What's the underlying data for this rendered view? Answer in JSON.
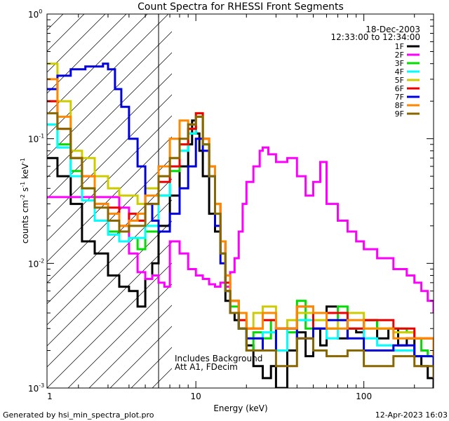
{
  "chart_data": {
    "type": "line",
    "title": "Count Spectra for RHESSI Front Segments",
    "xlabel": "Energy (keV)",
    "ylabel_parts": {
      "counts_cm": "counts cm",
      "exp_m2": "-2",
      "s": " s",
      "exp_m1_s": "-1",
      "kev": " keV",
      "exp_m1_kev": "-1"
    },
    "x_scale": "log",
    "y_scale": "log",
    "xlim": [
      1.3,
      260
    ],
    "ylim": [
      0.001,
      1.0
    ],
    "x_ticks": [
      {
        "value": 1,
        "label": "1"
      },
      {
        "value": 10,
        "label": "10"
      },
      {
        "value": 100,
        "label": "100"
      }
    ],
    "y_ticks": [
      {
        "value": 1.0,
        "label": "10",
        "exp": "0"
      },
      {
        "value": 0.1,
        "label": "10",
        "exp": "-1"
      },
      {
        "value": 0.01,
        "label": "10",
        "exp": "-2"
      },
      {
        "value": 0.001,
        "label": "10",
        "exp": "-3"
      }
    ],
    "shaded_region": {
      "x_from": 1.3,
      "x_to": 6.0,
      "pattern": "diagonal hatch"
    },
    "legend": {
      "date": "18-Dec-2003",
      "time_range": "12:33:00 to 12:34:00",
      "position": "top-right"
    },
    "annotations": {
      "line1": "Includes Background",
      "line2": "Att A1, FDecim"
    },
    "series": [
      {
        "name": "1F",
        "color": "#000000",
        "x": [
          1.3,
          1.5,
          1.8,
          2.1,
          2.5,
          3.0,
          3.5,
          4.0,
          4.5,
          5.0,
          5.5,
          6.0,
          7.0,
          8.0,
          9.0,
          9.5,
          10,
          10.5,
          11,
          12,
          13,
          14,
          15,
          16,
          17,
          18,
          20,
          22,
          25,
          28,
          30,
          35,
          40,
          45,
          50,
          55,
          60,
          70,
          80,
          90,
          100,
          120,
          140,
          160,
          180,
          200,
          220,
          240,
          260
        ],
        "values": [
          0.07,
          0.05,
          0.03,
          0.015,
          0.012,
          0.008,
          0.0065,
          0.006,
          0.0045,
          0.0075,
          0.01,
          0.02,
          0.035,
          0.06,
          0.09,
          0.14,
          0.11,
          0.08,
          0.05,
          0.025,
          0.018,
          0.012,
          0.005,
          0.004,
          0.0035,
          0.003,
          0.0022,
          0.0015,
          0.0012,
          0.0015,
          0.001,
          0.002,
          0.0028,
          0.0018,
          0.003,
          0.0022,
          0.0045,
          0.0025,
          0.003,
          0.0028,
          0.0035,
          0.0025,
          0.003,
          0.0022,
          0.0025,
          0.0018,
          0.0015,
          0.0012,
          0.001
        ]
      },
      {
        "name": "2F",
        "color": "#ff00ff",
        "x": [
          1.3,
          1.5,
          2.0,
          2.5,
          3.0,
          3.5,
          4.0,
          4.5,
          5.0,
          5.5,
          6.0,
          6.5,
          7.0,
          8.0,
          9.0,
          10,
          11,
          12,
          13,
          14,
          15,
          16,
          17,
          18,
          19,
          20,
          22,
          24,
          25,
          27,
          30,
          35,
          40,
          45,
          50,
          55,
          60,
          70,
          80,
          90,
          100,
          120,
          150,
          180,
          200,
          220,
          240,
          260
        ],
        "values": [
          0.034,
          0.034,
          0.034,
          0.034,
          0.034,
          0.028,
          0.012,
          0.0085,
          0.0075,
          0.008,
          0.007,
          0.0065,
          0.015,
          0.012,
          0.009,
          0.008,
          0.0075,
          0.0068,
          0.0065,
          0.007,
          0.0065,
          0.0085,
          0.011,
          0.018,
          0.03,
          0.045,
          0.06,
          0.08,
          0.085,
          0.075,
          0.065,
          0.07,
          0.05,
          0.035,
          0.045,
          0.065,
          0.03,
          0.022,
          0.018,
          0.015,
          0.013,
          0.011,
          0.009,
          0.008,
          0.007,
          0.006,
          0.005,
          0.004
        ]
      },
      {
        "name": "3F",
        "color": "#00dd00",
        "x": [
          1.3,
          1.5,
          1.8,
          2.1,
          2.5,
          3.0,
          3.5,
          4.0,
          4.5,
          5.0,
          6.0,
          7.0,
          8.0,
          9.0,
          10,
          11,
          12,
          13,
          14,
          15,
          16,
          18,
          20,
          22,
          25,
          28,
          30,
          35,
          40,
          45,
          50,
          60,
          70,
          80,
          100,
          120,
          150,
          180,
          200,
          220,
          240,
          260
        ],
        "values": [
          0.13,
          0.09,
          0.055,
          0.04,
          0.022,
          0.018,
          0.015,
          0.016,
          0.013,
          0.018,
          0.035,
          0.055,
          0.08,
          0.11,
          0.15,
          0.09,
          0.05,
          0.025,
          0.012,
          0.006,
          0.0045,
          0.003,
          0.002,
          0.0028,
          0.0025,
          0.0035,
          0.003,
          0.0028,
          0.005,
          0.003,
          0.004,
          0.003,
          0.0045,
          0.003,
          0.0035,
          0.003,
          0.003,
          0.0028,
          0.0025,
          0.002,
          0.0018,
          0.0015
        ]
      },
      {
        "name": "4F",
        "color": "#00ffff",
        "x": [
          1.3,
          1.5,
          1.8,
          2.1,
          2.5,
          3.0,
          3.5,
          4.0,
          4.5,
          5.0,
          6.0,
          7.0,
          8.0,
          9.0,
          10,
          11,
          12,
          13,
          14,
          15,
          16,
          18,
          20,
          25,
          30,
          35,
          40,
          50,
          60,
          70,
          80,
          100,
          120,
          150,
          200,
          260
        ],
        "values": [
          0.13,
          0.085,
          0.05,
          0.032,
          0.022,
          0.017,
          0.015,
          0.016,
          0.016,
          0.02,
          0.035,
          0.06,
          0.08,
          0.11,
          0.15,
          0.09,
          0.05,
          0.025,
          0.012,
          0.006,
          0.004,
          0.003,
          0.0025,
          0.0028,
          0.002,
          0.003,
          0.0035,
          0.003,
          0.0025,
          0.003,
          0.003,
          0.0025,
          0.0022,
          0.002,
          0.0018,
          0.0015
        ]
      },
      {
        "name": "5F",
        "color": "#cccc00",
        "x": [
          1.3,
          1.5,
          1.8,
          2.1,
          2.5,
          3.0,
          3.5,
          4.0,
          4.5,
          5.0,
          6.0,
          7.0,
          8.0,
          9.0,
          10,
          11,
          12,
          13,
          14,
          15,
          16,
          18,
          20,
          22,
          25,
          30,
          35,
          40,
          50,
          60,
          70,
          80,
          100,
          120,
          150,
          200,
          260
        ],
        "values": [
          0.4,
          0.2,
          0.08,
          0.07,
          0.05,
          0.04,
          0.035,
          0.035,
          0.03,
          0.04,
          0.05,
          0.07,
          0.09,
          0.12,
          0.16,
          0.1,
          0.06,
          0.03,
          0.015,
          0.008,
          0.005,
          0.004,
          0.003,
          0.004,
          0.0045,
          0.003,
          0.0035,
          0.004,
          0.0035,
          0.003,
          0.0035,
          0.004,
          0.003,
          0.003,
          0.0028,
          0.0025,
          0.002
        ]
      },
      {
        "name": "6F",
        "color": "#ee0000",
        "x": [
          1.3,
          1.5,
          1.8,
          2.1,
          2.5,
          3.0,
          3.5,
          4.0,
          4.5,
          5.0,
          6.0,
          7.0,
          8.0,
          9.0,
          10,
          11,
          12,
          13,
          14,
          15,
          16,
          18,
          20,
          25,
          30,
          40,
          50,
          60,
          80,
          100,
          150,
          200,
          260
        ],
        "values": [
          0.2,
          0.12,
          0.07,
          0.05,
          0.03,
          0.028,
          0.02,
          0.025,
          0.022,
          0.03,
          0.045,
          0.06,
          0.09,
          0.12,
          0.16,
          0.1,
          0.06,
          0.03,
          0.015,
          0.007,
          0.005,
          0.0035,
          0.003,
          0.0035,
          0.003,
          0.0045,
          0.003,
          0.004,
          0.003,
          0.0035,
          0.003,
          0.0025,
          0.002
        ]
      },
      {
        "name": "7F",
        "color": "#0000dd",
        "x": [
          1.3,
          1.5,
          1.8,
          2.0,
          2.2,
          2.5,
          2.8,
          3.0,
          3.3,
          3.6,
          4.0,
          4.5,
          5.0,
          5.5,
          6.0,
          7.0,
          8.0,
          9.0,
          10,
          11,
          12,
          13,
          14,
          15,
          16,
          18,
          20,
          25,
          30,
          40,
          50,
          60,
          80,
          100,
          150,
          200,
          260
        ],
        "values": [
          0.25,
          0.32,
          0.36,
          0.36,
          0.38,
          0.38,
          0.4,
          0.36,
          0.25,
          0.18,
          0.1,
          0.06,
          0.03,
          0.022,
          0.018,
          0.025,
          0.04,
          0.06,
          0.1,
          0.08,
          0.05,
          0.02,
          0.01,
          0.006,
          0.004,
          0.003,
          0.0025,
          0.002,
          0.003,
          0.0025,
          0.003,
          0.0035,
          0.0025,
          0.002,
          0.0022,
          0.0018,
          0.0015
        ]
      },
      {
        "name": "8F",
        "color": "#ff8800",
        "x": [
          1.3,
          1.5,
          1.8,
          2.1,
          2.5,
          3.0,
          3.5,
          4.0,
          4.5,
          5.0,
          6.0,
          7.0,
          8.0,
          9.0,
          10,
          11,
          12,
          13,
          14,
          15,
          16,
          18,
          20,
          25,
          30,
          40,
          50,
          60,
          80,
          100,
          150,
          200,
          260
        ],
        "values": [
          0.3,
          0.15,
          0.07,
          0.05,
          0.03,
          0.025,
          0.02,
          0.022,
          0.025,
          0.035,
          0.06,
          0.1,
          0.14,
          0.13,
          0.15,
          0.1,
          0.06,
          0.03,
          0.015,
          0.008,
          0.005,
          0.004,
          0.003,
          0.004,
          0.003,
          0.0045,
          0.004,
          0.003,
          0.0035,
          0.003,
          0.0025,
          0.0025,
          0.0018
        ]
      },
      {
        "name": "9F",
        "color": "#886600",
        "x": [
          1.3,
          1.5,
          1.8,
          2.1,
          2.5,
          3.0,
          3.5,
          4.0,
          4.5,
          5.0,
          6.0,
          7.0,
          8.0,
          9.0,
          10,
          11,
          12,
          13,
          14,
          15,
          16,
          18,
          20,
          25,
          30,
          40,
          50,
          60,
          80,
          100,
          150,
          200,
          260
        ],
        "values": [
          0.16,
          0.12,
          0.07,
          0.04,
          0.028,
          0.022,
          0.018,
          0.02,
          0.02,
          0.03,
          0.05,
          0.07,
          0.1,
          0.13,
          0.15,
          0.09,
          0.05,
          0.025,
          0.012,
          0.006,
          0.004,
          0.003,
          0.002,
          0.002,
          0.0015,
          0.0025,
          0.002,
          0.0018,
          0.002,
          0.0015,
          0.0018,
          0.0015,
          0.0012
        ]
      }
    ]
  },
  "footer": {
    "generated_by": "Generated by hsi_min_spectra_plot.pro",
    "timestamp": "12-Apr-2023 16:03"
  }
}
